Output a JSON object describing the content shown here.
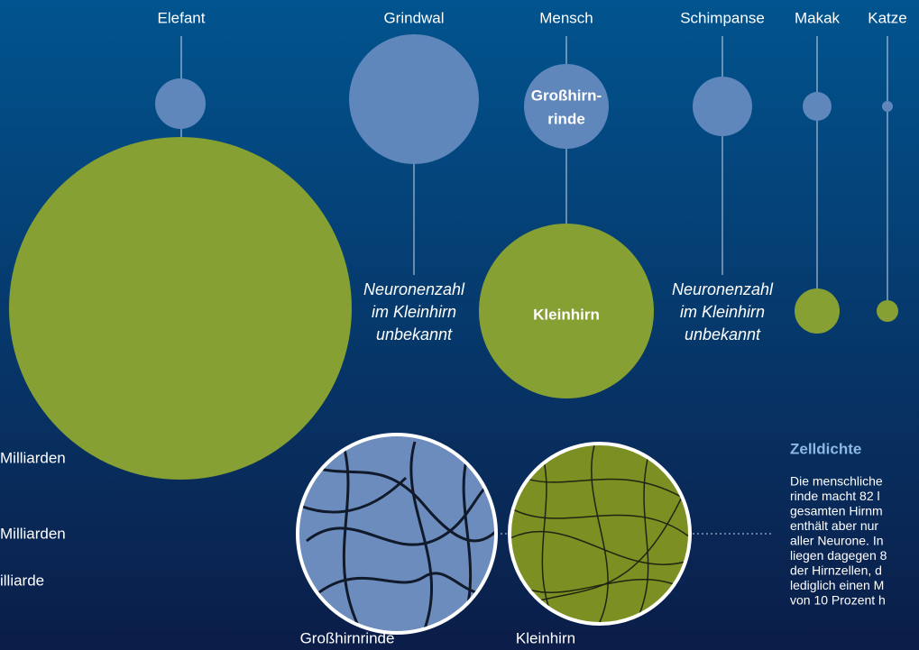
{
  "species": [
    "Elefant",
    "Grindwal",
    "Mensch",
    "Schimpanse",
    "Makak",
    "Katze"
  ],
  "circle_labels": {
    "cortex": [
      "Großhirn-",
      "rinde"
    ],
    "cerebellum": "Kleinhirn"
  },
  "unknown_note": [
    "Neuronenzahl",
    "im Kleinhirn",
    "unbekannt"
  ],
  "legend": [
    "Milliarden",
    "Milliarden",
    "illiarde"
  ],
  "micro_labels": [
    "Großhirnrinde",
    "Kleinhirn"
  ],
  "sidebar": {
    "title": "Zelldichte",
    "lines": [
      "Die menschliche",
      "rinde macht 82 l",
      "gesamten Hirnm",
      "enthält aber nur",
      "aller Neurone. In",
      "liegen dagegen 8",
      "der Hirnzellen, d",
      "lediglich einen M",
      "von 10 Prozent h"
    ]
  }
}
